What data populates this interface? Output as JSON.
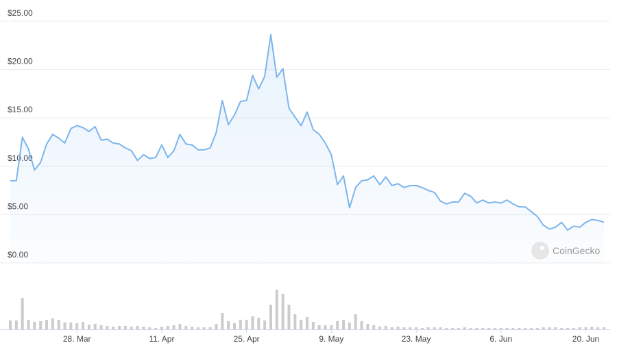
{
  "chart_data": {
    "type": "line",
    "series": [
      {
        "color": "#7cb5ec",
        "values": [
          8.5,
          8.5,
          13.0,
          11.8,
          9.6,
          10.4,
          12.3,
          13.3,
          12.9,
          12.4,
          13.9,
          14.2,
          14.0,
          13.6,
          14.1,
          12.7,
          12.8,
          12.4,
          12.3,
          11.9,
          11.6,
          10.6,
          11.2,
          10.8,
          10.9,
          12.2,
          10.9,
          11.6,
          13.3,
          12.3,
          12.2,
          11.7,
          11.7,
          11.9,
          13.5,
          16.8,
          14.3,
          15.3,
          16.7,
          16.8,
          19.4,
          18.0,
          19.3,
          23.6,
          19.2,
          20.1,
          16.0,
          15.1,
          14.2,
          15.6,
          13.8,
          13.3,
          12.4,
          11.2,
          8.1,
          9.0,
          5.7,
          7.8,
          8.5,
          8.6,
          9.0,
          8.1,
          8.9,
          8.0,
          8.2,
          7.8,
          8.0,
          8.0,
          7.8,
          7.5,
          7.3,
          6.4,
          6.1,
          6.3,
          6.3,
          7.2,
          6.9,
          6.2,
          6.5,
          6.2,
          6.3,
          6.2,
          6.5,
          6.1,
          5.8,
          5.8,
          5.3,
          4.8,
          3.9,
          3.5,
          3.7,
          4.2,
          3.4,
          3.8,
          3.7,
          4.2,
          4.5,
          4.4,
          4.2
        ]
      }
    ],
    "volumes": {
      "color": "#cccccc",
      "values": [
        13,
        13,
        46,
        14,
        11,
        12,
        14,
        16,
        14,
        10,
        10,
        9,
        11,
        7,
        8,
        6,
        5,
        4,
        5,
        5,
        4,
        5,
        4,
        3,
        2,
        4,
        5,
        6,
        8,
        5,
        4,
        3,
        3,
        3,
        8,
        24,
        12,
        9,
        14,
        14,
        19,
        17,
        13,
        36,
        58,
        52,
        36,
        22,
        14,
        18,
        11,
        6,
        6,
        6,
        12,
        14,
        10,
        22,
        12,
        8,
        6,
        4,
        5,
        3,
        4,
        3,
        3,
        3,
        2,
        3,
        3,
        3,
        2,
        2,
        2,
        3,
        2,
        2,
        2,
        2,
        2,
        2,
        2,
        2,
        2,
        2,
        2,
        2,
        3,
        3,
        3,
        2,
        2,
        2,
        3,
        3,
        4,
        3,
        3
      ],
      "lim": [
        0,
        60
      ]
    },
    "categories": [
      null,
      null,
      null,
      null,
      null,
      null,
      null,
      null,
      null,
      null,
      null,
      "28. Mar",
      null,
      null,
      null,
      null,
      null,
      null,
      null,
      null,
      null,
      null,
      null,
      null,
      null,
      "11. Apr",
      null,
      null,
      null,
      null,
      null,
      null,
      null,
      null,
      null,
      null,
      null,
      null,
      null,
      "25. Apr",
      null,
      null,
      null,
      null,
      null,
      null,
      null,
      null,
      null,
      null,
      null,
      null,
      null,
      "9. May",
      null,
      null,
      null,
      null,
      null,
      null,
      null,
      null,
      null,
      null,
      null,
      null,
      null,
      "23. May",
      null,
      null,
      null,
      null,
      null,
      null,
      null,
      null,
      null,
      null,
      null,
      null,
      null,
      "6. Jun",
      null,
      null,
      null,
      null,
      null,
      null,
      null,
      null,
      null,
      null,
      null,
      null,
      null,
      "20. Jun",
      null,
      null,
      null
    ],
    "ylim": [
      0,
      25
    ],
    "yticks": [
      {
        "value": 0,
        "label": "$0.00"
      },
      {
        "value": 5,
        "label": "$5.00"
      },
      {
        "value": 10,
        "label": "$10.00"
      },
      {
        "value": 15,
        "label": "$15.00"
      },
      {
        "value": 20,
        "label": "$20.00"
      },
      {
        "value": 25,
        "label": "$25.00"
      }
    ],
    "grid": true,
    "watermark": "CoinGecko"
  }
}
